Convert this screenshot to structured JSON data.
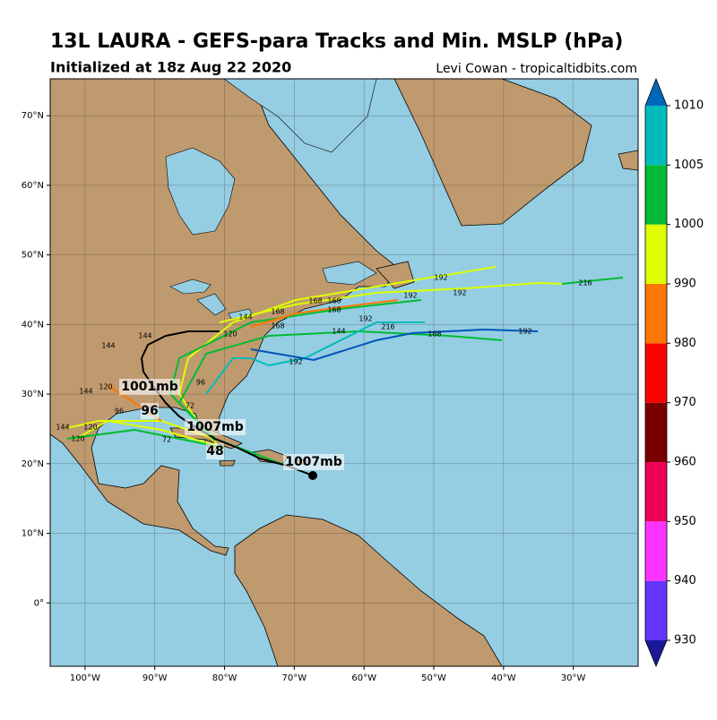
{
  "header": {
    "title": "13L LAURA - GEFS-para Tracks and Min. MSLP (hPa)",
    "subtitle": "Initialized at 18z Aug 22 2020",
    "credit": "Levi Cowan - tropicaltidbits.com"
  },
  "map": {
    "lat_ticks": [
      {
        "value": 70,
        "label": "70°N"
      },
      {
        "value": 60,
        "label": "60°N"
      },
      {
        "value": 50,
        "label": "50°N"
      },
      {
        "value": 40,
        "label": "40°N"
      },
      {
        "value": 30,
        "label": "30°N"
      },
      {
        "value": 20,
        "label": "20°N"
      },
      {
        "value": 10,
        "label": "10°N"
      },
      {
        "value": 0,
        "label": "0°"
      }
    ],
    "lon_ticks": [
      {
        "value": -100,
        "label": "100°W"
      },
      {
        "value": -90,
        "label": "90°W"
      },
      {
        "value": -80,
        "label": "80°W"
      },
      {
        "value": -70,
        "label": "70°W"
      },
      {
        "value": -60,
        "label": "60°W"
      },
      {
        "value": -50,
        "label": "50°W"
      },
      {
        "value": -40,
        "label": "40°W"
      },
      {
        "value": -30,
        "label": "30°W"
      }
    ],
    "lonlim": [
      -105,
      -20.7
    ],
    "latlim": [
      -9.1,
      75.3
    ],
    "grid": true,
    "annotations": [
      "1007mb",
      "1007mb",
      "1001mb",
      "96",
      "48"
    ],
    "hour_labels": [
      "192",
      "192",
      "192",
      "192",
      "192",
      "192",
      "216",
      "216",
      "168",
      "168",
      "168",
      "168",
      "168",
      "168",
      "144",
      "144",
      "144",
      "144",
      "144",
      "144",
      "120",
      "120",
      "120",
      "120",
      "96",
      "96",
      "72",
      "72"
    ]
  },
  "colorbar": {
    "ticks": [
      930,
      940,
      950,
      960,
      970,
      980,
      990,
      1000,
      1005,
      1010
    ],
    "colors": [
      "#6633ff",
      "#ff33ff",
      "#ee0055",
      "#7a0000",
      "#ff0000",
      "#ff7700",
      "#ddff00",
      "#00bb33",
      "#00bbbb"
    ],
    "under_color": "#1a1a99",
    "over_color": "#0066bb"
  }
}
